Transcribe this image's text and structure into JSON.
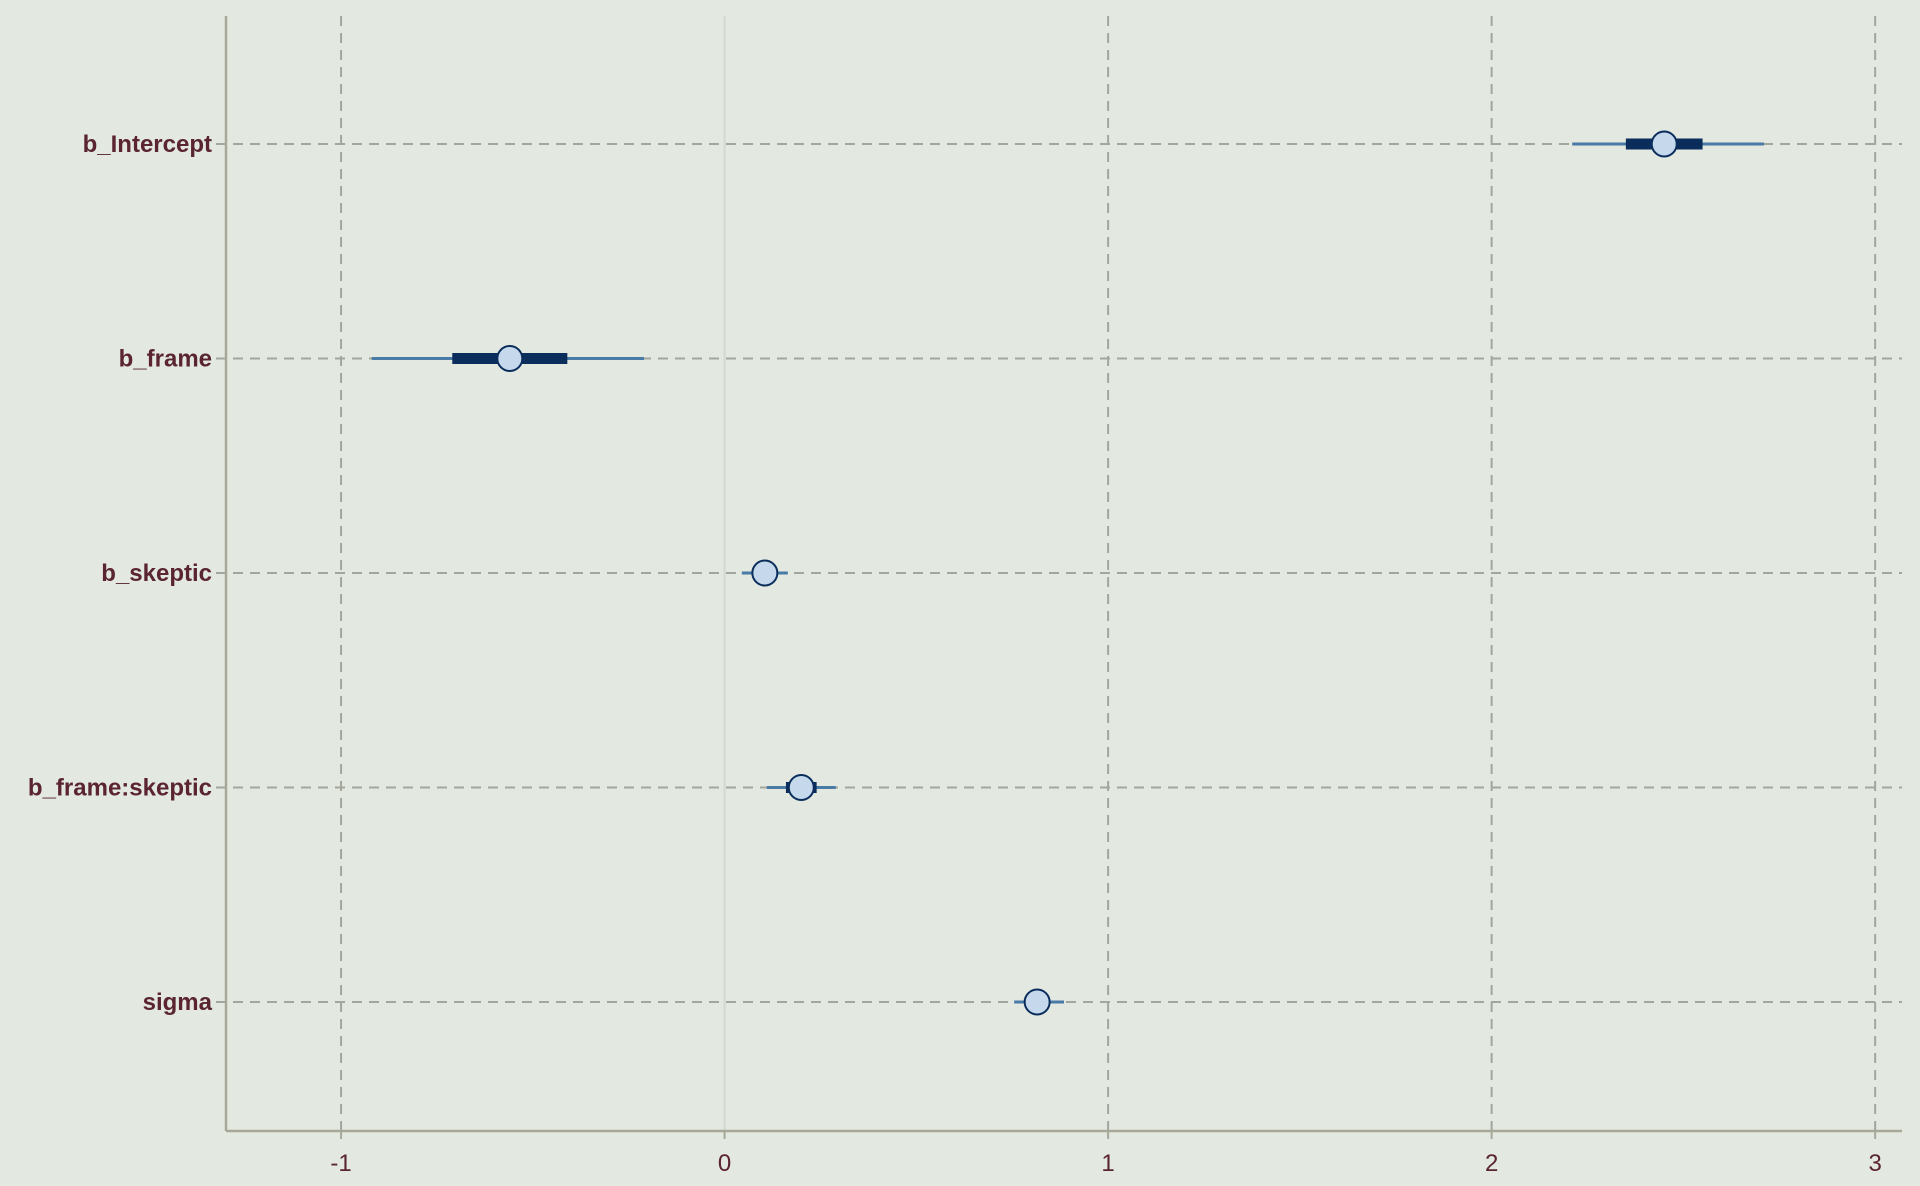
{
  "chart_data": {
    "type": "interval",
    "title": "",
    "xlabel": "",
    "ylabel": "",
    "xlim": [
      -1.3,
      3.07
    ],
    "x_ticks": [
      "-1",
      "0",
      "1",
      "2",
      "3"
    ],
    "x_tick_values": [
      -1,
      0,
      1,
      2,
      3
    ],
    "zero_line": 0,
    "grid": true,
    "colors": {
      "background": "#e3e8e1",
      "grid": "#a3a69c",
      "axis": "#a8a898",
      "outer_interval": "#4a7aa6",
      "inner_interval": "#0b2d5c",
      "point_fill": "#c6d9ec",
      "point_stroke": "#0b2d5c",
      "label_text": "#5a2530"
    },
    "parameters": [
      {
        "name": "b_Intercept",
        "median": 2.45,
        "inner": [
          2.35,
          2.55
        ],
        "outer": [
          2.21,
          2.71
        ]
      },
      {
        "name": "b_frame",
        "median": -0.56,
        "inner": [
          -0.71,
          -0.41
        ],
        "outer": [
          -0.92,
          -0.21
        ]
      },
      {
        "name": "b_skeptic",
        "median": 0.105,
        "inner": [
          0.085,
          0.125
        ],
        "outer": [
          0.045,
          0.165
        ]
      },
      {
        "name": "b_frame:skeptic",
        "median": 0.2,
        "inner": [
          0.16,
          0.24
        ],
        "outer": [
          0.11,
          0.29
        ]
      },
      {
        "name": "sigma",
        "median": 0.815,
        "inner": [
          0.795,
          0.835
        ],
        "outer": [
          0.755,
          0.885
        ]
      }
    ]
  }
}
